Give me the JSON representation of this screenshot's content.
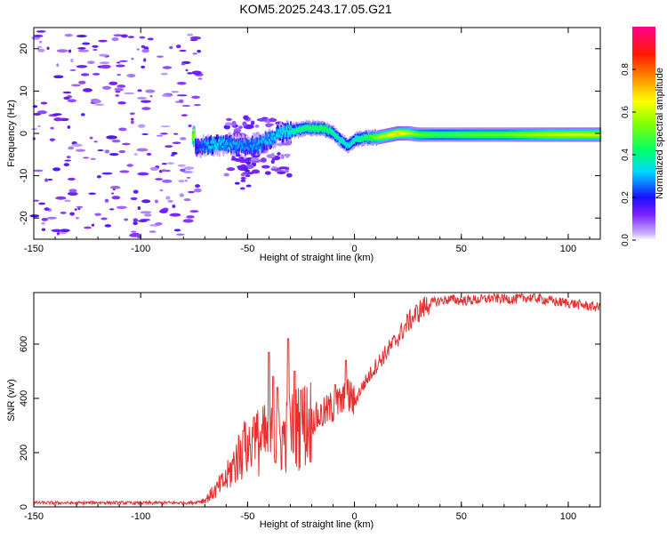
{
  "title": "KOM5.2025.243.17.05.G21",
  "chart_data": [
    {
      "type": "heatmap",
      "xlabel": "Height of straight line (km)",
      "ylabel": "Frequency (Hz)",
      "xlim": [
        -150,
        115
      ],
      "ylim": [
        -25,
        25
      ],
      "xticks": [
        "-150",
        "-100",
        "-50",
        "0",
        "50",
        "100"
      ],
      "yticks": [
        "-20",
        "-10",
        "0",
        "10",
        "20"
      ],
      "colorbar": {
        "label": "Normalized spectral amplitude",
        "range": [
          0,
          1
        ],
        "ticks": [
          "0.0",
          "0.2",
          "0.4",
          "0.6",
          "0.8"
        ]
      },
      "ridge": [
        {
          "x": -75,
          "f": -3,
          "a": 0.22
        },
        {
          "x": -70,
          "f": -3,
          "a": 0.3
        },
        {
          "x": -65,
          "f": -2.5,
          "a": 0.35
        },
        {
          "x": -60,
          "f": -2.5,
          "a": 0.3
        },
        {
          "x": -55,
          "f": -3,
          "a": 0.3
        },
        {
          "x": -50,
          "f": -3,
          "a": 0.28
        },
        {
          "x": -45,
          "f": -2.5,
          "a": 0.3
        },
        {
          "x": -40,
          "f": -1.5,
          "a": 0.32
        },
        {
          "x": -35,
          "f": 0,
          "a": 0.35
        },
        {
          "x": -30,
          "f": 0.5,
          "a": 0.38
        },
        {
          "x": -25,
          "f": 1,
          "a": 0.42
        },
        {
          "x": -20,
          "f": 1.3,
          "a": 0.45
        },
        {
          "x": -15,
          "f": 1.2,
          "a": 0.45
        },
        {
          "x": -10,
          "f": 0,
          "a": 0.4
        },
        {
          "x": -6,
          "f": -2,
          "a": 0.38
        },
        {
          "x": -3,
          "f": -3,
          "a": 0.35
        },
        {
          "x": 0,
          "f": -1.5,
          "a": 0.38
        },
        {
          "x": 5,
          "f": -1,
          "a": 0.45
        },
        {
          "x": 10,
          "f": -1,
          "a": 0.55
        },
        {
          "x": 15,
          "f": -0.5,
          "a": 0.62
        },
        {
          "x": 20,
          "f": 0,
          "a": 0.7
        },
        {
          "x": 25,
          "f": 0,
          "a": 0.6
        },
        {
          "x": 30,
          "f": -0.3,
          "a": 0.5
        },
        {
          "x": 40,
          "f": -0.3,
          "a": 0.45
        },
        {
          "x": 50,
          "f": -0.3,
          "a": 0.48
        },
        {
          "x": 60,
          "f": -0.3,
          "a": 0.5
        },
        {
          "x": 70,
          "f": -0.3,
          "a": 0.5
        },
        {
          "x": 80,
          "f": -0.3,
          "a": 0.55
        },
        {
          "x": 90,
          "f": -0.3,
          "a": 0.58
        },
        {
          "x": 100,
          "f": -0.3,
          "a": 0.6
        },
        {
          "x": 110,
          "f": -0.3,
          "a": 0.6
        },
        {
          "x": 115,
          "f": -0.3,
          "a": 0.6
        }
      ]
    },
    {
      "type": "line",
      "xlabel": "Height of straight line (km)",
      "ylabel": "SNR (v/v)",
      "xlim": [
        -150,
        115
      ],
      "ylim": [
        0,
        790
      ],
      "xticks": [
        "-150",
        "-100",
        "-50",
        "0",
        "50",
        "100"
      ],
      "yticks": [
        "0",
        "200",
        "400",
        "600"
      ],
      "series": [
        {
          "name": "SNR",
          "color": "#e53030",
          "x": [
            -150,
            -140,
            -130,
            -120,
            -110,
            -100,
            -90,
            -80,
            -75,
            -70,
            -65,
            -60,
            -55,
            -50,
            -45,
            -40,
            -35,
            -30,
            -25,
            -20,
            -15,
            -10,
            -5,
            -2,
            0,
            2,
            5,
            10,
            15,
            20,
            25,
            30,
            35,
            40,
            45,
            50,
            55,
            60,
            65,
            70,
            75,
            80,
            85,
            90,
            95,
            100,
            105,
            110,
            115
          ],
          "y": [
            15,
            15,
            14,
            16,
            15,
            14,
            15,
            15,
            16,
            25,
            60,
            100,
            180,
            220,
            240,
            250,
            240,
            280,
            300,
            320,
            340,
            370,
            390,
            410,
            380,
            420,
            460,
            520,
            570,
            620,
            680,
            720,
            750,
            760,
            765,
            760,
            762,
            765,
            770,
            768,
            765,
            772,
            770,
            762,
            755,
            752,
            745,
            740,
            735
          ],
          "peaks": [
            {
              "x": -40,
              "y": 570
            },
            {
              "x": -38,
              "y": 480
            },
            {
              "x": -36,
              "y": 440
            },
            {
              "x": -31,
              "y": 620
            },
            {
              "x": -28,
              "y": 500
            },
            {
              "x": -47,
              "y": 330
            },
            {
              "x": -52,
              "y": 280
            },
            {
              "x": -25,
              "y": 430
            },
            {
              "x": -9,
              "y": 450
            },
            {
              "x": -4,
              "y": 540
            }
          ]
        }
      ]
    }
  ]
}
